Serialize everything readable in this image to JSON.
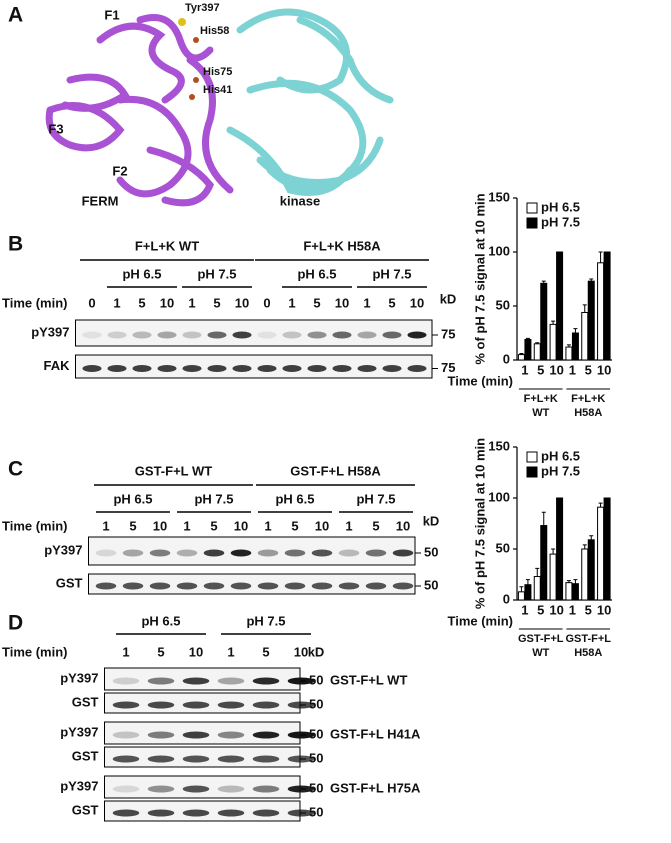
{
  "panel_a": {
    "letter": "A",
    "labels": [
      "F1",
      "Tyr397",
      "His58",
      "His75",
      "His41",
      "F3",
      "F2",
      "FERM",
      "kinase"
    ]
  },
  "panel_b": {
    "letter": "B",
    "groups": [
      "F+L+K WT",
      "F+L+K H58A"
    ],
    "ph": [
      "pH 6.5",
      "pH 7.5"
    ],
    "time_label": "Time (min)",
    "lanes": [
      0,
      1,
      5,
      10,
      1,
      5,
      10,
      0,
      1,
      5,
      10,
      1,
      5,
      10
    ],
    "unit": "kD",
    "blots": [
      {
        "label": "pY397",
        "marker": 75
      },
      {
        "label": "FAK",
        "marker": 75
      }
    ]
  },
  "panel_c": {
    "letter": "C",
    "groups": [
      "GST-F+L WT",
      "GST-F+L H58A"
    ],
    "ph": [
      "pH 6.5",
      "pH 7.5"
    ],
    "time_label": "Time (min)",
    "lanes": [
      1,
      5,
      10,
      1,
      5,
      10,
      1,
      5,
      10,
      1,
      5,
      10
    ],
    "unit": "kD",
    "blots": [
      {
        "label": "pY397",
        "marker": 50
      },
      {
        "label": "GST",
        "marker": 50
      }
    ]
  },
  "panel_d": {
    "letter": "D",
    "ph": [
      "pH 6.5",
      "pH 7.5"
    ],
    "time_label": "Time (min)",
    "lanes": [
      1,
      5,
      10,
      1,
      5,
      10
    ],
    "unit": "kD",
    "constructs": [
      {
        "name": "GST-F+L WT",
        "blots": [
          {
            "label": "pY397",
            "marker": 50
          },
          {
            "label": "GST",
            "marker": 50
          }
        ]
      },
      {
        "name": "GST-F+L H41A",
        "blots": [
          {
            "label": "pY397",
            "marker": 50
          },
          {
            "label": "GST",
            "marker": 50
          }
        ]
      },
      {
        "name": "GST-F+L H75A",
        "blots": [
          {
            "label": "pY397",
            "marker": 50
          },
          {
            "label": "GST",
            "marker": 50
          }
        ]
      }
    ]
  },
  "chart_data": [
    {
      "type": "bar",
      "y_label": "% of pH 7.5 signal at 10 min",
      "x_label": "Time (min)",
      "ylim": [
        0,
        150
      ],
      "yticks": [
        0,
        50,
        100,
        150
      ],
      "categories": [
        "1",
        "5",
        "10",
        "1",
        "5",
        "10"
      ],
      "groups": [
        [
          "F+L+K",
          "WT"
        ],
        [
          "F+L+K",
          "H58A"
        ]
      ],
      "series": [
        {
          "name": "pH 6.5",
          "color": "#ffffff",
          "values": [
            5,
            15,
            33,
            12,
            44,
            90
          ],
          "errors": [
            1,
            1,
            3,
            2,
            7,
            10
          ]
        },
        {
          "name": "pH 7.5",
          "color": "#000000",
          "values": [
            19,
            71,
            100,
            25,
            73,
            100
          ],
          "errors": [
            1,
            2,
            0,
            4,
            2,
            0
          ]
        }
      ]
    },
    {
      "type": "bar",
      "y_label": "% of pH 7.5 signal at 10 min",
      "x_label": "Time (min)",
      "ylim": [
        0,
        150
      ],
      "yticks": [
        0,
        50,
        100,
        150
      ],
      "categories": [
        "1",
        "5",
        "10",
        "1",
        "5",
        "10"
      ],
      "groups": [
        [
          "GST-F+L",
          "WT"
        ],
        [
          "GST-F+L",
          "H58A"
        ]
      ],
      "series": [
        {
          "name": "pH 6.5",
          "color": "#ffffff",
          "values": [
            8,
            23,
            45,
            17,
            50,
            91
          ],
          "errors": [
            5,
            8,
            5,
            2,
            4,
            4
          ]
        },
        {
          "name": "pH 7.5",
          "color": "#000000",
          "values": [
            15,
            73,
            100,
            16,
            59,
            100
          ],
          "errors": [
            5,
            13,
            0,
            4,
            4,
            0
          ]
        }
      ]
    }
  ]
}
